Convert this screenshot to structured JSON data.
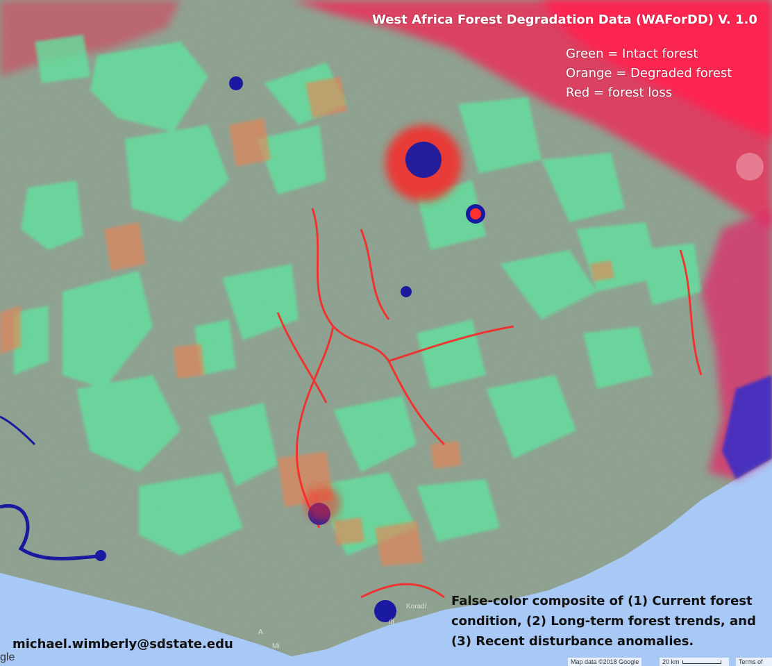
{
  "map": {
    "title": "West Africa Forest Degradation Data (WAForDD) V. 1.0",
    "legend": [
      "Green = Intact forest",
      "Orange = Degraded forest",
      "Red = forest loss"
    ],
    "caption_lines": [
      "False-color composite of (1) Current forest",
      "condition, (2) Long-term forest trends, and",
      "(3) Recent disturbance anomalies."
    ],
    "contact_email": "michael.wimberly@sdstate.edu",
    "place_labels": {
      "koradi": "Koradi",
      "di": "di",
      "a": "A",
      "mi": "Mi"
    },
    "attribution": {
      "map_data": "Map data ©2018 Google",
      "scale": "20 km",
      "terms": "Terms of Use"
    },
    "google_logo_fragment": "gle",
    "colors": {
      "ocean": "#a8c8f5",
      "intact_forest": "#5ee6a0",
      "degraded_forest": "#e88a5a",
      "forest_loss": "#ff2a2a",
      "urban": "#1a1aa0",
      "background_land": "#7fa08a"
    }
  }
}
